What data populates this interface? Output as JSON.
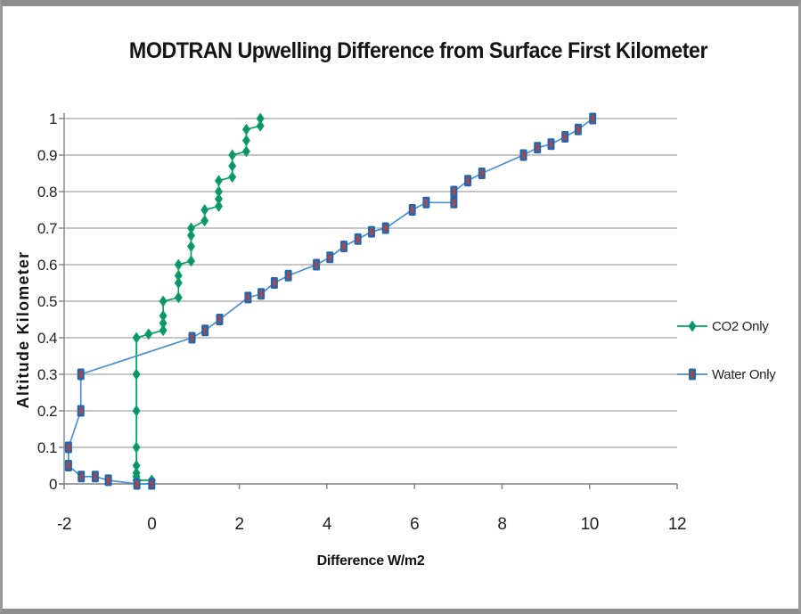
{
  "frame": {
    "border_color": "#8E8E8E",
    "background": "#FFFFFF"
  },
  "chart": {
    "title": "MODTRAN Upwelling Difference from Surface First Kilometer",
    "x_axis_title": "Difference W/m2",
    "y_axis_title": "Altitude Kilometer"
  },
  "legend": {
    "position": "right",
    "items": [
      "CO2 Only",
      "Water Only"
    ]
  },
  "chart_data": {
    "type": "line",
    "title": "MODTRAN Upwelling Difference from Surface First Kilometer",
    "xlabel": "Difference W/m2",
    "ylabel": "Altitude Kilometer",
    "xlim": [
      -2,
      12
    ],
    "ylim": [
      0,
      1
    ],
    "x_ticks": [
      -2,
      0,
      2,
      4,
      6,
      8,
      10,
      12
    ],
    "y_ticks": [
      0,
      0.1,
      0.2,
      0.3,
      0.4,
      0.5,
      0.6,
      0.7,
      0.8,
      0.9,
      1
    ],
    "grid": "horizontal",
    "legend_position": "right",
    "colors": {
      "grid": "#A3A3A3",
      "axis": "#7F7F7F",
      "text": "#1F1F1F"
    },
    "series": [
      {
        "name": "CO2 Only",
        "marker": "diamond",
        "line_color": "#00A45A",
        "marker_color": "#00A45A",
        "marker_accent": "#20818C",
        "points": [
          [
            0,
            0.01
          ],
          [
            -0.35,
            0.01
          ],
          [
            -0.35,
            0.02
          ],
          [
            -0.35,
            0.03
          ],
          [
            -0.35,
            0.05
          ],
          [
            -0.35,
            0.1
          ],
          [
            -0.35,
            0.2
          ],
          [
            -0.35,
            0.3
          ],
          [
            -0.35,
            0.4
          ],
          [
            -0.07,
            0.41
          ],
          [
            0.26,
            0.42
          ],
          [
            0.26,
            0.44
          ],
          [
            0.26,
            0.46
          ],
          [
            0.26,
            0.5
          ],
          [
            0.61,
            0.51
          ],
          [
            0.61,
            0.55
          ],
          [
            0.61,
            0.57
          ],
          [
            0.61,
            0.6
          ],
          [
            0.9,
            0.61
          ],
          [
            0.9,
            0.65
          ],
          [
            0.9,
            0.68
          ],
          [
            0.9,
            0.7
          ],
          [
            1.21,
            0.72
          ],
          [
            1.21,
            0.75
          ],
          [
            1.53,
            0.76
          ],
          [
            1.53,
            0.78
          ],
          [
            1.53,
            0.8
          ],
          [
            1.53,
            0.83
          ],
          [
            1.84,
            0.84
          ],
          [
            1.84,
            0.87
          ],
          [
            1.84,
            0.9
          ],
          [
            2.16,
            0.91
          ],
          [
            2.16,
            0.94
          ],
          [
            2.16,
            0.97
          ],
          [
            2.48,
            0.98
          ],
          [
            2.48,
            1.0
          ]
        ]
      },
      {
        "name": "Water Only",
        "marker": "square",
        "line_color": "#4A8FD5",
        "marker_color": "#2268B0",
        "marker_accent": "#B5443F",
        "points": [
          [
            0,
            0
          ],
          [
            -0.34,
            0
          ],
          [
            -0.99,
            0.01
          ],
          [
            -1.29,
            0.02
          ],
          [
            -1.61,
            0.02
          ],
          [
            -1.9,
            0.05
          ],
          [
            -1.9,
            0.1
          ],
          [
            -1.62,
            0.2
          ],
          [
            -1.62,
            0.3
          ],
          [
            0.92,
            0.4
          ],
          [
            1.22,
            0.42
          ],
          [
            1.55,
            0.45
          ],
          [
            2.2,
            0.51
          ],
          [
            2.5,
            0.52
          ],
          [
            2.8,
            0.55
          ],
          [
            3.12,
            0.57
          ],
          [
            3.76,
            0.6
          ],
          [
            4.07,
            0.62
          ],
          [
            4.39,
            0.65
          ],
          [
            4.71,
            0.67
          ],
          [
            5.02,
            0.69
          ],
          [
            5.34,
            0.7
          ],
          [
            5.95,
            0.75
          ],
          [
            6.27,
            0.77
          ],
          [
            6.9,
            0.77
          ],
          [
            6.9,
            0.8
          ],
          [
            7.22,
            0.83
          ],
          [
            7.54,
            0.85
          ],
          [
            8.49,
            0.9
          ],
          [
            8.81,
            0.92
          ],
          [
            9.12,
            0.93
          ],
          [
            9.44,
            0.95
          ],
          [
            9.74,
            0.97
          ],
          [
            10.07,
            1.0
          ]
        ]
      }
    ]
  }
}
